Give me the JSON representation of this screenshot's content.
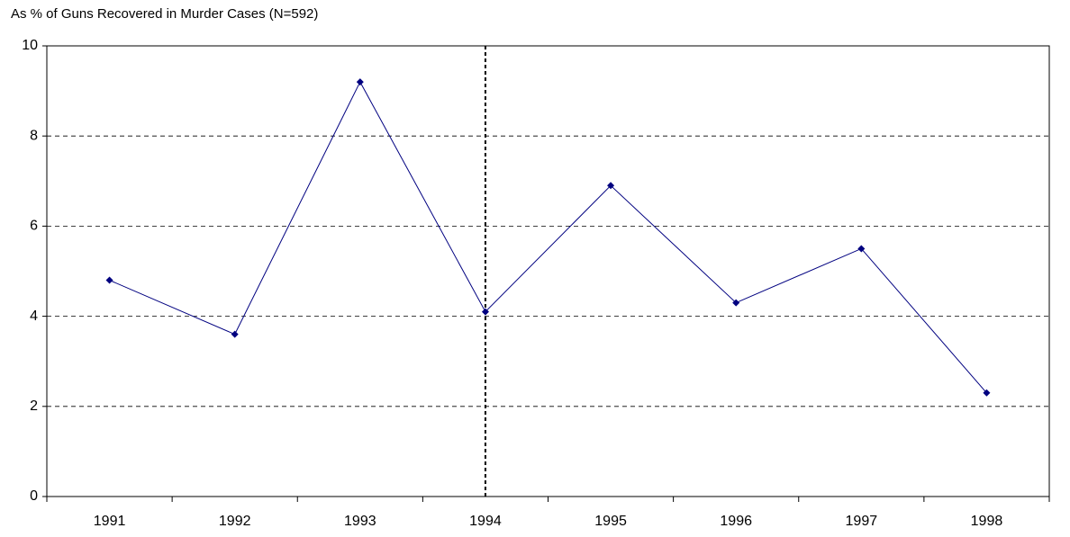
{
  "chart_data": {
    "type": "line",
    "title": "As % of Guns Recovered in Murder Cases (N=592)",
    "categories": [
      "1991",
      "1992",
      "1993",
      "1994",
      "1995",
      "1996",
      "1997",
      "1998"
    ],
    "series": [
      {
        "name": null,
        "color": "#000080",
        "values": [
          4.8,
          3.6,
          9.2,
          4.1,
          6.9,
          4.3,
          5.5,
          2.3
        ]
      }
    ],
    "ylim": [
      0,
      10
    ],
    "yticks": [
      0,
      2,
      4,
      6,
      8,
      10
    ],
    "grid": true,
    "reference_category": "1994"
  }
}
